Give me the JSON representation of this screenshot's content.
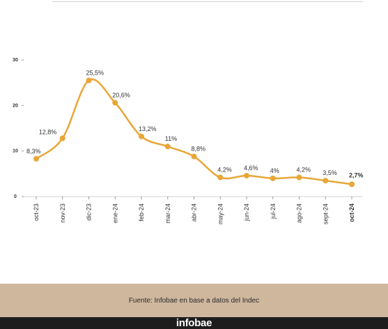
{
  "chart_data": {
    "type": "line",
    "categories": [
      "oct-23",
      "nov-23",
      "dic-23",
      "ene-24",
      "feb-24",
      "mar-24",
      "abr-24",
      "may-24",
      "jun-24",
      "jul-24",
      "ago-24",
      "sept-24",
      "oct-24"
    ],
    "values": [
      8.3,
      12.8,
      25.5,
      20.6,
      13.2,
      11,
      8.8,
      4.2,
      4.6,
      4,
      4.2,
      3.5,
      2.7
    ],
    "data_labels": [
      "8,3%",
      "12,8%",
      "25,5%",
      "20,6%",
      "13,2%",
      "11%",
      "8,8%",
      "4,2%",
      "4,6%",
      "4%",
      "4,2%",
      "3,5%",
      "2,7%"
    ],
    "yticks": [
      0,
      10,
      20,
      30
    ],
    "ytick_labels": [
      "0",
      "10",
      "20",
      "30"
    ],
    "ylim": [
      0,
      30
    ],
    "title": "",
    "xlabel": "",
    "ylabel": "",
    "grid": false,
    "colors": {
      "line": "#e8a637",
      "text": "#333333",
      "axis": "#cfcfcf"
    }
  },
  "footer": {
    "source": "Fuente: Infobae en base a datos del Indec",
    "brand": "infobae",
    "band_color": "#cfb79e",
    "brand_bar_color": "#1d1d1d"
  }
}
